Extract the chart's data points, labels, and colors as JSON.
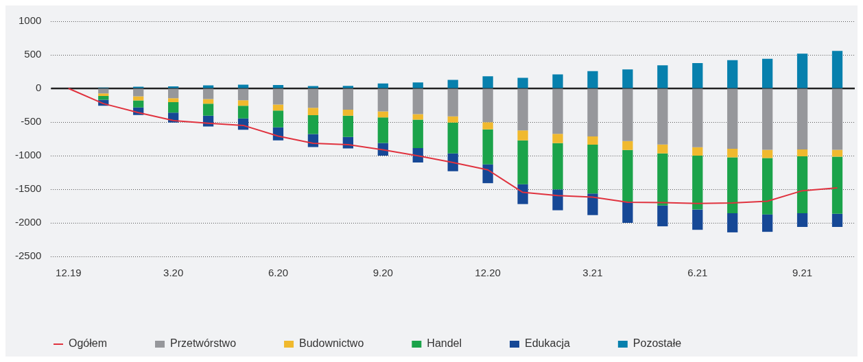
{
  "chart_data": {
    "type": "bar",
    "stacked": true,
    "categories": [
      "12.19",
      null,
      null,
      "3.20",
      null,
      null,
      "6.20",
      null,
      null,
      "9.20",
      null,
      null,
      "12.20",
      null,
      null,
      "3.21",
      null,
      null,
      "6.21",
      null,
      null,
      "9.21",
      null
    ],
    "series": [
      {
        "name": "Przetwórstwo",
        "color": "#96979b",
        "values": [
          0,
          -73,
          -117,
          -145,
          -159,
          -176,
          -240,
          -288,
          -316,
          -341,
          -383,
          -416,
          -503,
          -626,
          -676,
          -715,
          -782,
          -835,
          -874,
          -899,
          -913,
          -908,
          -913
        ]
      },
      {
        "name": "Budownictwo",
        "color": "#f0b92e",
        "values": [
          0,
          -39,
          -61,
          -59,
          -67,
          -81,
          -89,
          -109,
          -89,
          -89,
          -81,
          -92,
          -106,
          -148,
          -137,
          -123,
          -134,
          -131,
          -126,
          -126,
          -123,
          -103,
          -103
        ]
      },
      {
        "name": "Handel",
        "color": "#1ba34a",
        "values": [
          0,
          -56,
          -106,
          -156,
          -179,
          -190,
          -249,
          -282,
          -316,
          -380,
          -425,
          -458,
          -522,
          -651,
          -690,
          -726,
          -768,
          -776,
          -802,
          -832,
          -838,
          -846,
          -849
        ]
      },
      {
        "name": "Edukacja",
        "color": "#164896",
        "values": [
          0,
          -89,
          -112,
          -148,
          -162,
          -168,
          -196,
          -193,
          -173,
          -190,
          -212,
          -265,
          -279,
          -296,
          -310,
          -321,
          -316,
          -310,
          -302,
          -285,
          -260,
          -204,
          -196
        ]
      },
      {
        "name": "Pozostałe",
        "color": "#0780ad",
        "values": [
          0,
          14,
          25,
          31,
          45,
          56,
          50,
          36,
          39,
          73,
          89,
          128,
          182,
          159,
          209,
          257,
          282,
          344,
          377,
          422,
          441,
          517,
          559
        ]
      },
      {
        "name": "Ogółem",
        "type": "line",
        "color": "#e0323e",
        "values": [
          0,
          -226,
          -360,
          -478,
          -517,
          -550,
          -709,
          -816,
          -836,
          -913,
          -1003,
          -1103,
          -1212,
          -1547,
          -1595,
          -1617,
          -1695,
          -1698,
          -1712,
          -1704,
          -1679,
          -1522,
          -1480
        ]
      }
    ],
    "ylim": [
      -2500,
      1000
    ],
    "yticks": [
      -2500,
      -2000,
      -1500,
      -1000,
      -500,
      0,
      500,
      1000
    ],
    "grid": "y",
    "legend": "bottom",
    "marker": "none",
    "line_style": "solid",
    "ref_lines": [
      {
        "axis": "y",
        "value": 0,
        "color": "#222222"
      }
    ]
  }
}
